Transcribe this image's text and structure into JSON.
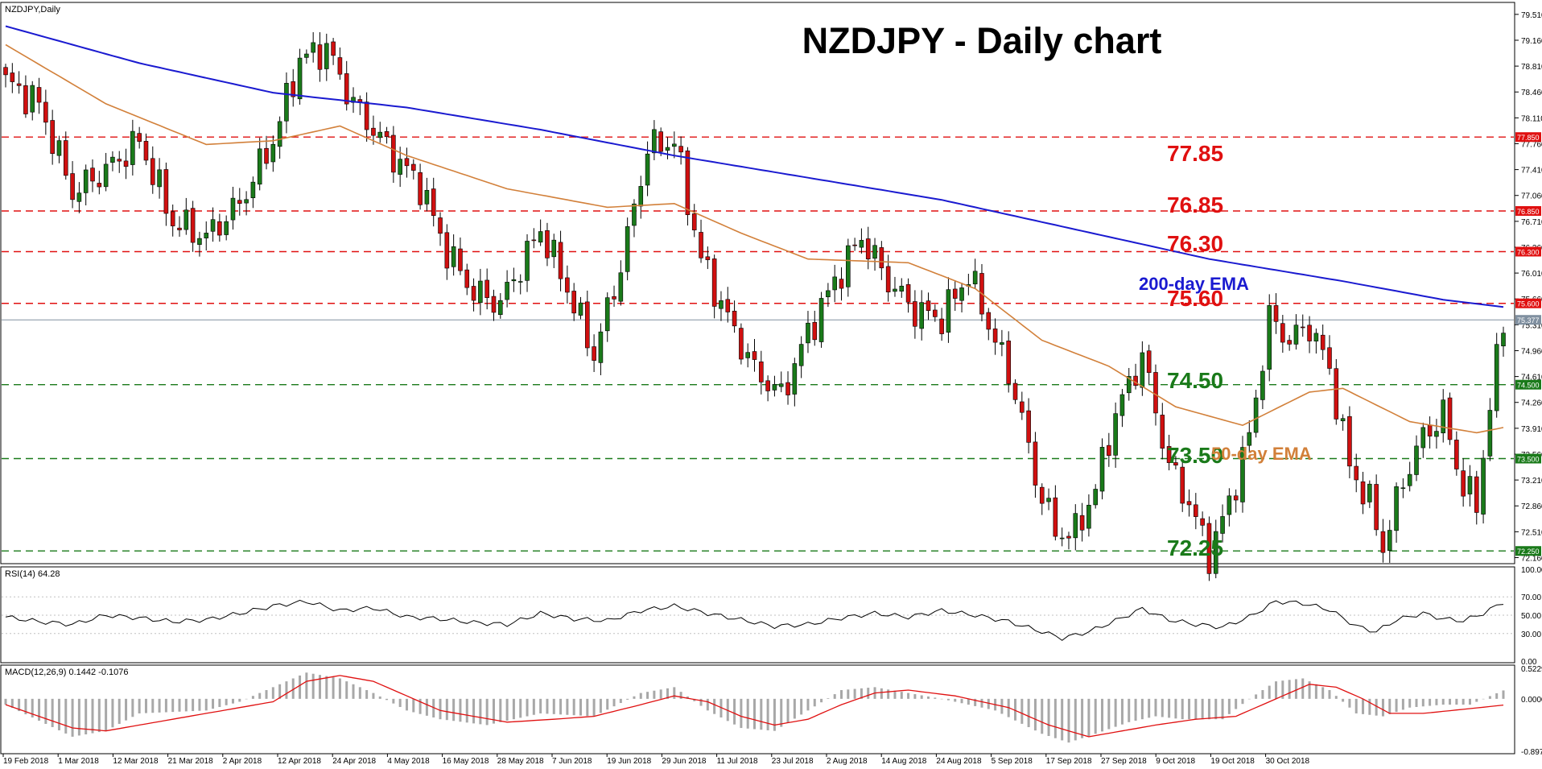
{
  "window": {
    "symbol_label": "NZDJPY,Daily",
    "title": "NZDJPY - Daily chart"
  },
  "colors": {
    "bull": "#1a7a1a",
    "bear": "#d01010",
    "ema200": "#1a1ad0",
    "ema50": "#d2803a",
    "resistance": "#e01010",
    "support": "#1a7a1a",
    "rsi_line": "#000000",
    "macd_hist": "#a8a8a8",
    "macd_signal": "#e01010",
    "grid": "#c0c0c0",
    "current_price_line": "#8090a0"
  },
  "chart_data": [
    {
      "type": "candlestick",
      "title": "NZDJPY - Daily chart",
      "ylim": [
        72.1,
        79.65
      ],
      "y_ticks": [
        "79.510",
        "79.160",
        "78.810",
        "78.460",
        "78.110",
        "77.760",
        "77.410",
        "77.060",
        "76.710",
        "76.360",
        "76.010",
        "75.660",
        "75.310",
        "74.960",
        "74.610",
        "74.260",
        "73.910",
        "73.560",
        "73.210",
        "72.860",
        "72.510",
        "72.160"
      ],
      "x_ticks": [
        "19 Feb 2018",
        "1 Mar 2018",
        "12 Mar 2018",
        "21 Mar 2018",
        "2 Apr 2018",
        "12 Apr 2018",
        "24 Apr 2018",
        "4 May 2018",
        "16 May 2018",
        "28 May 2018",
        "7 Jun 2018",
        "19 Jun 2018",
        "29 Jun 2018",
        "11 Jul 2018",
        "23 Jul 2018",
        "2 Aug 2018",
        "14 Aug 2018",
        "24 Aug 2018",
        "5 Sep 2018",
        "17 Sep 2018",
        "27 Sep 2018",
        "9 Oct 2018",
        "19 Oct 2018",
        "30 Oct 2018"
      ],
      "series": [
        {
          "name": "200-day EMA",
          "anchors": [
            [
              0,
              79.35
            ],
            [
              20,
              78.85
            ],
            [
              40,
              78.45
            ],
            [
              60,
              78.25
            ],
            [
              80,
              77.95
            ],
            [
              100,
              77.6
            ],
            [
              120,
              77.3
            ],
            [
              140,
              77.0
            ],
            [
              160,
              76.6
            ],
            [
              180,
              76.2
            ],
            [
              200,
              75.9
            ],
            [
              215,
              75.65
            ],
            [
              224,
              75.55
            ]
          ]
        },
        {
          "name": "50-day EMA",
          "anchors": [
            [
              0,
              79.1
            ],
            [
              15,
              78.3
            ],
            [
              30,
              77.75
            ],
            [
              40,
              77.8
            ],
            [
              50,
              78.0
            ],
            [
              60,
              77.6
            ],
            [
              75,
              77.15
            ],
            [
              90,
              76.9
            ],
            [
              100,
              76.95
            ],
            [
              110,
              76.55
            ],
            [
              120,
              76.2
            ],
            [
              135,
              76.15
            ],
            [
              145,
              75.8
            ],
            [
              155,
              75.1
            ],
            [
              165,
              74.75
            ],
            [
              175,
              74.2
            ],
            [
              185,
              73.95
            ],
            [
              195,
              74.4
            ],
            [
              200,
              74.45
            ],
            [
              210,
              74.0
            ],
            [
              220,
              73.85
            ],
            [
              224,
              73.92
            ]
          ]
        }
      ],
      "closes": [
        [
          0,
          78.6
        ],
        [
          5,
          78.3
        ],
        [
          10,
          77.1
        ],
        [
          15,
          77.4
        ],
        [
          20,
          77.8
        ],
        [
          25,
          76.7
        ],
        [
          30,
          76.5
        ],
        [
          35,
          76.95
        ],
        [
          40,
          77.8
        ],
        [
          44,
          78.9
        ],
        [
          48,
          79.05
        ],
        [
          52,
          78.3
        ],
        [
          58,
          77.6
        ],
        [
          62,
          77.2
        ],
        [
          66,
          76.3
        ],
        [
          70,
          75.75
        ],
        [
          74,
          75.6
        ],
        [
          80,
          76.6
        ],
        [
          84,
          75.8
        ],
        [
          88,
          74.9
        ],
        [
          92,
          76.1
        ],
        [
          96,
          77.7
        ],
        [
          100,
          77.8
        ],
        [
          104,
          76.2
        ],
        [
          108,
          75.4
        ],
        [
          112,
          74.7
        ],
        [
          116,
          74.35
        ],
        [
          120,
          75.2
        ],
        [
          124,
          75.9
        ],
        [
          128,
          76.5
        ],
        [
          130,
          76.2
        ],
        [
          132,
          75.9
        ],
        [
          136,
          75.5
        ],
        [
          140,
          75.4
        ],
        [
          144,
          76.0
        ],
        [
          148,
          75.1
        ],
        [
          151,
          74.4
        ],
        [
          154,
          73.25
        ],
        [
          157,
          72.5
        ],
        [
          160,
          72.5
        ],
        [
          163,
          73.1
        ],
        [
          166,
          74.1
        ],
        [
          170,
          74.9
        ],
        [
          174,
          73.4
        ],
        [
          177,
          72.9
        ],
        [
          180,
          72.2
        ],
        [
          183,
          72.9
        ],
        [
          186,
          73.8
        ],
        [
          189,
          75.4
        ],
        [
          192,
          75.1
        ],
        [
          195,
          75.3
        ],
        [
          198,
          74.7
        ],
        [
          201,
          73.4
        ],
        [
          204,
          72.9
        ],
        [
          206,
          72.3
        ],
        [
          209,
          73.2
        ],
        [
          212,
          73.8
        ],
        [
          215,
          74.1
        ],
        [
          218,
          73.1
        ],
        [
          220,
          72.9
        ],
        [
          222,
          74.2
        ],
        [
          224,
          75.4
        ]
      ],
      "lines": [
        {
          "label": "77.85",
          "value": 77.85,
          "kind": "resistance",
          "tag": "77.850"
        },
        {
          "label": "76.85",
          "value": 76.85,
          "kind": "resistance",
          "tag": "76.850"
        },
        {
          "label": "76.30",
          "value": 76.3,
          "kind": "resistance",
          "tag": "76.300"
        },
        {
          "label": "75.60",
          "value": 75.6,
          "kind": "resistance",
          "tag": "75.600"
        },
        {
          "label": "74.50",
          "value": 74.5,
          "kind": "support",
          "tag": "74.500"
        },
        {
          "label": "73.50",
          "value": 73.5,
          "kind": "support",
          "tag": "73.500"
        },
        {
          "label": "72.25",
          "value": 72.25,
          "kind": "support",
          "tag": "72.250"
        }
      ],
      "current_price": {
        "value": 75.377,
        "tag": "75.377"
      },
      "annotations": [
        {
          "text": "200-day EMA",
          "series": "200-day EMA"
        },
        {
          "text": "50-day EMA",
          "series": "50-day EMA"
        }
      ]
    },
    {
      "type": "line",
      "header": "RSI(14) 64.28",
      "ylim": [
        0,
        100
      ],
      "y_ticks": [
        "100.00",
        "70.00",
        "50.00",
        "30.00",
        "0.00"
      ],
      "levels": [
        70,
        50,
        30
      ],
      "anchors": [
        [
          0,
          48
        ],
        [
          5,
          43
        ],
        [
          10,
          40
        ],
        [
          15,
          50
        ],
        [
          20,
          47
        ],
        [
          25,
          43
        ],
        [
          30,
          45
        ],
        [
          35,
          52
        ],
        [
          40,
          60
        ],
        [
          45,
          65
        ],
        [
          50,
          55
        ],
        [
          55,
          58
        ],
        [
          60,
          48
        ],
        [
          65,
          46
        ],
        [
          70,
          42
        ],
        [
          75,
          40
        ],
        [
          80,
          52
        ],
        [
          85,
          46
        ],
        [
          90,
          44
        ],
        [
          95,
          55
        ],
        [
          100,
          60
        ],
        [
          105,
          52
        ],
        [
          110,
          45
        ],
        [
          115,
          38
        ],
        [
          120,
          40
        ],
        [
          125,
          47
        ],
        [
          130,
          52
        ],
        [
          135,
          48
        ],
        [
          140,
          55
        ],
        [
          145,
          50
        ],
        [
          150,
          43
        ],
        [
          155,
          32
        ],
        [
          158,
          25
        ],
        [
          162,
          32
        ],
        [
          166,
          44
        ],
        [
          170,
          57
        ],
        [
          174,
          45
        ],
        [
          178,
          40
        ],
        [
          182,
          37
        ],
        [
          186,
          48
        ],
        [
          190,
          65
        ],
        [
          194,
          63
        ],
        [
          198,
          56
        ],
        [
          202,
          38
        ],
        [
          205,
          32
        ],
        [
          208,
          45
        ],
        [
          212,
          52
        ],
        [
          215,
          46
        ],
        [
          218,
          44
        ],
        [
          221,
          52
        ],
        [
          224,
          64.28
        ]
      ]
    },
    {
      "type": "bar",
      "header": "MACD(12,26,9) 0.1442 -0.1076",
      "ylim": [
        -0.9,
        0.5229
      ],
      "y_ticks": [
        "0.5229",
        "0.0000",
        "-0.8976"
      ],
      "series": [
        {
          "name": "MACD",
          "anchors": [
            [
              0,
              -0.1
            ],
            [
              10,
              -0.65
            ],
            [
              15,
              -0.55
            ],
            [
              20,
              -0.25
            ],
            [
              30,
              -0.2
            ],
            [
              35,
              -0.05
            ],
            [
              40,
              0.2
            ],
            [
              45,
              0.45
            ],
            [
              50,
              0.35
            ],
            [
              55,
              0.1
            ],
            [
              60,
              -0.2
            ],
            [
              65,
              -0.35
            ],
            [
              72,
              -0.45
            ],
            [
              80,
              -0.25
            ],
            [
              88,
              -0.3
            ],
            [
              95,
              0.1
            ],
            [
              100,
              0.2
            ],
            [
              105,
              -0.2
            ],
            [
              110,
              -0.5
            ],
            [
              115,
              -0.55
            ],
            [
              120,
              -0.2
            ],
            [
              125,
              0.15
            ],
            [
              130,
              0.2
            ],
            [
              135,
              0.1
            ],
            [
              140,
              0.0
            ],
            [
              148,
              -0.2
            ],
            [
              155,
              -0.6
            ],
            [
              159,
              -0.75
            ],
            [
              163,
              -0.6
            ],
            [
              168,
              -0.4
            ],
            [
              172,
              -0.3
            ],
            [
              176,
              -0.35
            ],
            [
              182,
              -0.35
            ],
            [
              186,
              0.0
            ],
            [
              190,
              0.3
            ],
            [
              194,
              0.35
            ],
            [
              198,
              0.15
            ],
            [
              202,
              -0.25
            ],
            [
              206,
              -0.3
            ],
            [
              210,
              -0.15
            ],
            [
              215,
              -0.1
            ],
            [
              219,
              -0.1
            ],
            [
              224,
              0.1442
            ]
          ]
        },
        {
          "name": "Signal",
          "anchors": [
            [
              0,
              -0.1
            ],
            [
              5,
              -0.3
            ],
            [
              10,
              -0.5
            ],
            [
              15,
              -0.55
            ],
            [
              20,
              -0.45
            ],
            [
              30,
              -0.25
            ],
            [
              40,
              -0.05
            ],
            [
              45,
              0.3
            ],
            [
              50,
              0.4
            ],
            [
              55,
              0.3
            ],
            [
              60,
              0.05
            ],
            [
              65,
              -0.2
            ],
            [
              75,
              -0.4
            ],
            [
              82,
              -0.35
            ],
            [
              88,
              -0.3
            ],
            [
              95,
              -0.1
            ],
            [
              100,
              0.05
            ],
            [
              105,
              -0.05
            ],
            [
              110,
              -0.3
            ],
            [
              115,
              -0.45
            ],
            [
              120,
              -0.35
            ],
            [
              125,
              -0.1
            ],
            [
              130,
              0.1
            ],
            [
              135,
              0.15
            ],
            [
              142,
              0.05
            ],
            [
              150,
              -0.15
            ],
            [
              156,
              -0.45
            ],
            [
              162,
              -0.65
            ],
            [
              167,
              -0.55
            ],
            [
              172,
              -0.45
            ],
            [
              178,
              -0.35
            ],
            [
              184,
              -0.3
            ],
            [
              190,
              0.0
            ],
            [
              195,
              0.25
            ],
            [
              199,
              0.2
            ],
            [
              203,
              0.0
            ],
            [
              207,
              -0.25
            ],
            [
              212,
              -0.25
            ],
            [
              218,
              -0.18
            ],
            [
              224,
              -0.1076
            ]
          ]
        }
      ]
    }
  ]
}
